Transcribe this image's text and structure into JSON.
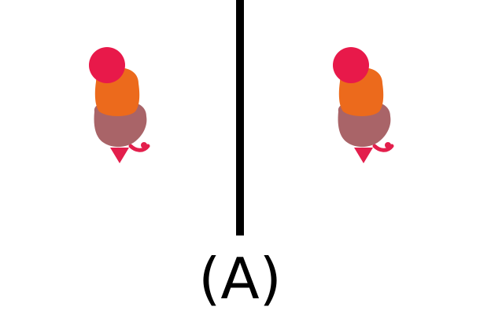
{
  "caption": "(A)",
  "colors": {
    "background": "#ffffff",
    "divider": "#000000",
    "head": "#e8194a",
    "upper_body": "#ec6a1c",
    "lower_body": "#a96468",
    "tip": "#e31f4c"
  },
  "panels": [
    {
      "name": "left",
      "object": "stacked-colored-figure"
    },
    {
      "name": "right",
      "object": "stacked-colored-figure"
    }
  ]
}
